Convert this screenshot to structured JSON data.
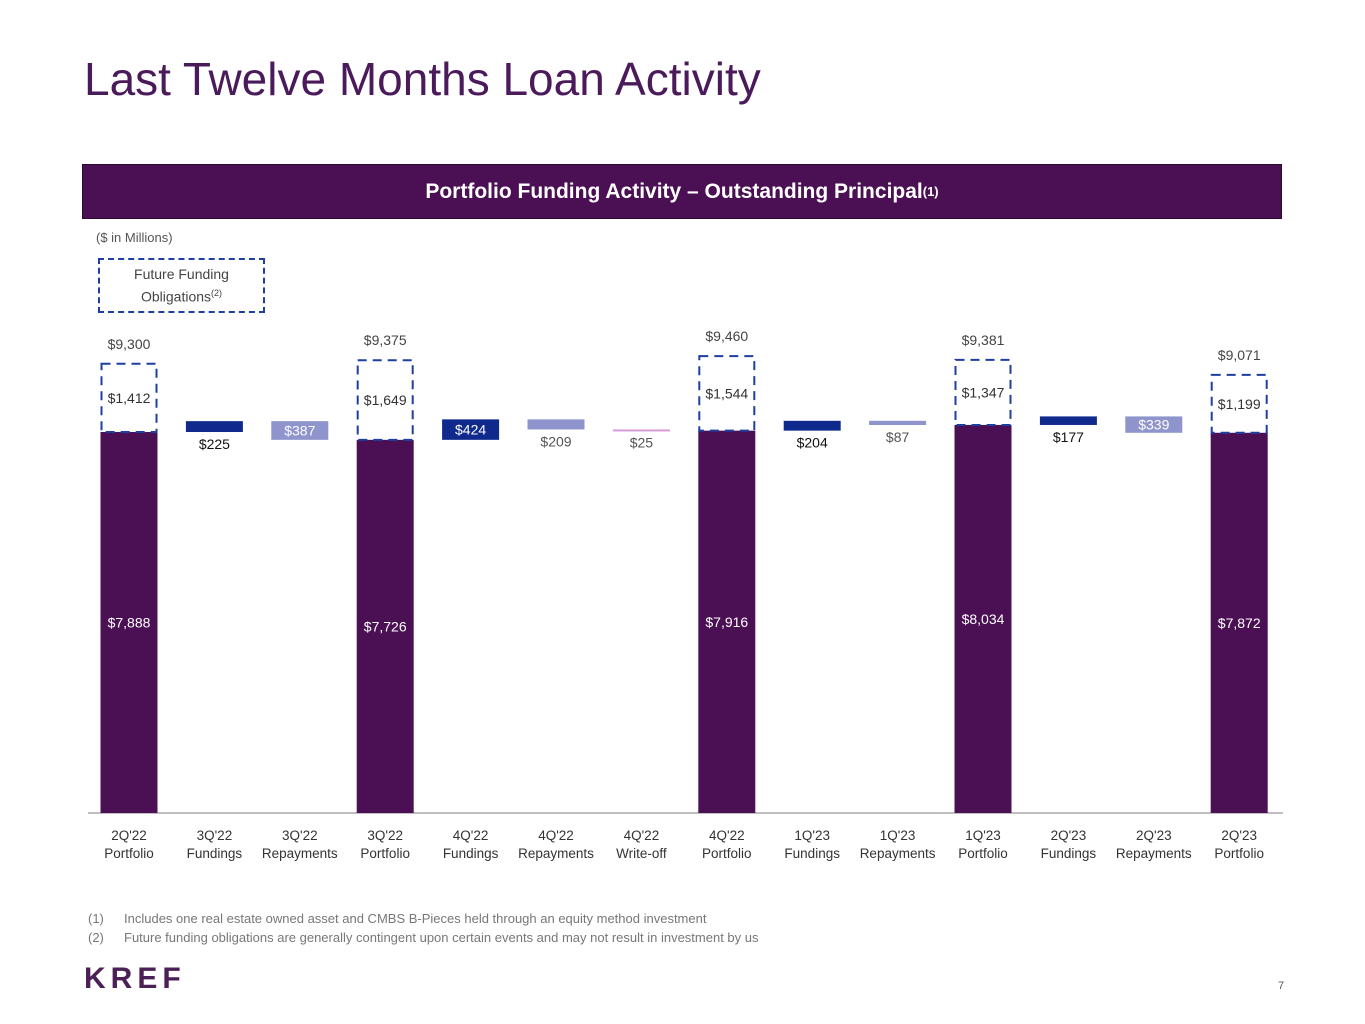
{
  "title": "Last Twelve Months Loan Activity",
  "banner": {
    "text": "Portfolio Funding Activity – Outstanding Principal",
    "sup": "(1)"
  },
  "units_note": "($ in Millions)",
  "legend": {
    "line1": "Future Funding",
    "line2": "Obligations",
    "sup": "(2)"
  },
  "chart_data": {
    "type": "bar",
    "subtype": "waterfall",
    "categories": [
      [
        "2Q'22",
        "Portfolio"
      ],
      [
        "3Q'22",
        "Fundings"
      ],
      [
        "3Q'22",
        "Repayments"
      ],
      [
        "3Q'22",
        "Portfolio"
      ],
      [
        "4Q'22",
        "Fundings"
      ],
      [
        "4Q'22",
        "Repayments"
      ],
      [
        "4Q'22",
        "Write-off"
      ],
      [
        "4Q'22",
        "Portfolio"
      ],
      [
        "1Q'23",
        "Fundings"
      ],
      [
        "1Q'23",
        "Repayments"
      ],
      [
        "1Q'23",
        "Portfolio"
      ],
      [
        "2Q'23",
        "Fundings"
      ],
      [
        "2Q'23",
        "Repayments"
      ],
      [
        "2Q'23",
        "Portfolio"
      ]
    ],
    "portfolio_bars": [
      {
        "index": 0,
        "outstanding": 7888,
        "future_funding": 1412,
        "total": 9300,
        "outstanding_label": "$7,888",
        "future_label": "$1,412",
        "total_label": "$9,300"
      },
      {
        "index": 3,
        "outstanding": 7726,
        "future_funding": 1649,
        "total": 9375,
        "outstanding_label": "$7,726",
        "future_label": "$1,649",
        "total_label": "$9,375"
      },
      {
        "index": 7,
        "outstanding": 7916,
        "future_funding": 1544,
        "total": 9460,
        "outstanding_label": "$7,916",
        "future_label": "$1,544",
        "total_label": "$9,460"
      },
      {
        "index": 10,
        "outstanding": 8034,
        "future_funding": 1347,
        "total": 9381,
        "outstanding_label": "$8,034",
        "future_label": "$1,347",
        "total_label": "$9,381"
      },
      {
        "index": 13,
        "outstanding": 7872,
        "future_funding": 1199,
        "total": 9071,
        "outstanding_label": "$7,872",
        "future_label": "$1,199",
        "total_label": "$9,071"
      }
    ],
    "flow_bars": [
      {
        "index": 1,
        "kind": "funding",
        "value": 225,
        "label": "$225"
      },
      {
        "index": 2,
        "kind": "repayment",
        "value": 387,
        "label": "$387"
      },
      {
        "index": 4,
        "kind": "funding",
        "value": 424,
        "label": "$424"
      },
      {
        "index": 5,
        "kind": "repayment",
        "value": 209,
        "label": "$209"
      },
      {
        "index": 6,
        "kind": "writeoff",
        "value": 25,
        "label": "$25"
      },
      {
        "index": 8,
        "kind": "funding",
        "value": 204,
        "label": "$204"
      },
      {
        "index": 9,
        "kind": "repayment",
        "value": 87,
        "label": "$87"
      },
      {
        "index": 11,
        "kind": "funding",
        "value": 177,
        "label": "$177"
      },
      {
        "index": 12,
        "kind": "repayment",
        "value": 339,
        "label": "$339"
      }
    ],
    "colors": {
      "portfolio": "#4b1054",
      "funding": "#0f2a8c",
      "repayment": "#8f94cc",
      "writeoff": "#d79ad8",
      "future_border": "#1f3fa0"
    },
    "ylim": [
      0,
      10000
    ]
  },
  "footnotes": [
    {
      "n": "(1)",
      "text": "Includes one real estate owned asset and CMBS B-Pieces held through an equity method investment"
    },
    {
      "n": "(2)",
      "text": "Future funding obligations are generally contingent upon certain events and may not result in investment by us"
    }
  ],
  "logo": "KREF",
  "page_number": "7"
}
